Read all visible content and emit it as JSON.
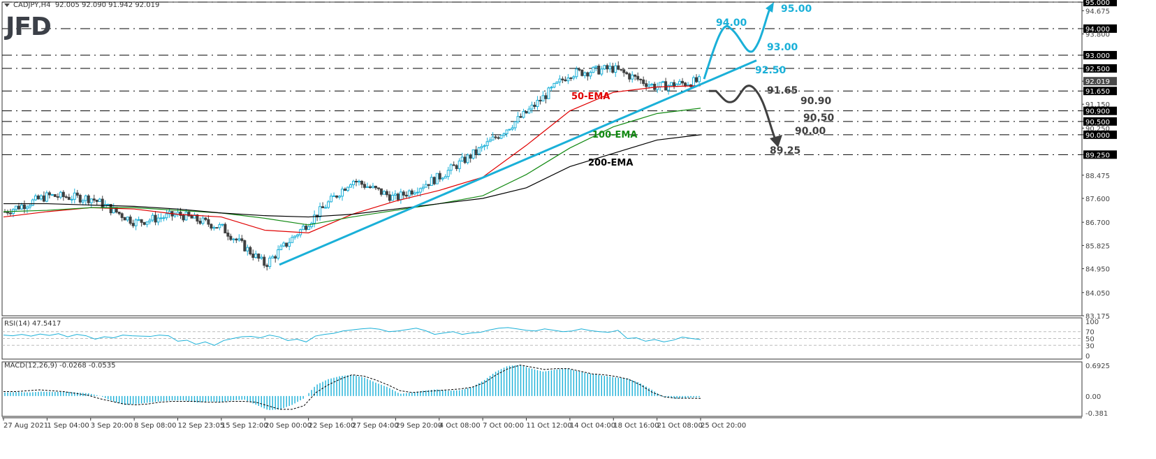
{
  "header": {
    "symbol": "CADJPY,H4",
    "ohlc": "92.005 92.090 91.942 92.019"
  },
  "logo": "JFD",
  "colors": {
    "bull": "#1ab0d8",
    "bear": "#404040",
    "ema50": "#e00000",
    "ema100": "#138a13",
    "ema200": "#000000",
    "trendline": "#1ab0d8",
    "bull_path": "#1ab0d8",
    "bear_path": "#404040",
    "rsi": "#1ab0d8",
    "macd_hist": "#1ab0d8",
    "macd_signal": "#000000"
  },
  "rsi_panel": {
    "label": "RSI(14) 47.5417"
  },
  "macd_panel": {
    "label": "MACD(12,26,9) -0.0268 -0.0535"
  },
  "chart_data": [
    {
      "type": "candlestick",
      "title": "CADJPY, H4",
      "ohlc_last": {
        "open": 92.005,
        "high": 92.09,
        "low": 91.942,
        "close": 92.019
      },
      "ylim": [
        83.175,
        95.0
      ],
      "y_ticks": [
        95.0,
        94.675,
        94.0,
        93.8,
        93.0,
        92.5,
        92.019,
        91.65,
        91.15,
        90.9,
        90.5,
        90.25,
        90.0,
        89.25,
        88.475,
        87.6,
        86.7,
        85.825,
        84.95,
        84.05,
        83.175
      ],
      "y_tick_labels": [
        "95.000",
        "94.675",
        "94.000",
        "93.800",
        "93.000",
        "92.500",
        "92.019",
        "91.650",
        "91.150",
        "90.900",
        "90.500",
        "90.250",
        "90.000",
        "89.250",
        "88.475",
        "87.600",
        "86.700",
        "85.825",
        "84.950",
        "84.050",
        "83.175"
      ],
      "highlighted_levels": [
        95.0,
        94.0,
        93.0,
        92.5,
        91.65,
        90.9,
        90.5,
        90.0,
        89.25
      ],
      "current_price": 92.019,
      "x_tick_labels": [
        "27 Aug 2021",
        "1 Sep 04:00",
        "3 Sep 20:00",
        "8 Sep 08:00",
        "12 Sep 23:05",
        "15 Sep 12:00",
        "20 Sep 00:00",
        "22 Sep 16:00",
        "27 Sep 04:00",
        "29 Sep 20:00",
        "4 Oct 08:00",
        "7 Oct 00:00",
        "11 Oct 12:00",
        "14 Oct 04:00",
        "18 Oct 16:00",
        "21 Oct 08:00",
        "25 Oct 20:00"
      ],
      "price_path": {
        "x": [
          "27 Aug 2021",
          "1 Sep 04:00",
          "3 Sep 20:00",
          "8 Sep 08:00",
          "12 Sep 23:05",
          "15 Sep 12:00",
          "20 Sep 00:00",
          "22 Sep 16:00",
          "27 Sep 04:00",
          "29 Sep 20:00",
          "4 Oct 08:00",
          "7 Oct 00:00",
          "11 Oct 12:00",
          "14 Oct 04:00",
          "18 Oct 16:00",
          "21 Oct 08:00",
          "25 Oct 20:00"
        ],
        "close": [
          87.1,
          87.7,
          87.6,
          86.7,
          87.0,
          86.5,
          85.1,
          86.7,
          88.3,
          87.6,
          88.4,
          89.5,
          90.8,
          92.3,
          92.5,
          91.8,
          92.02
        ]
      },
      "series": [
        {
          "name": "50-EMA",
          "color": "#e00000",
          "values": [
            86.9,
            87.1,
            87.25,
            87.2,
            87.0,
            86.9,
            86.4,
            86.3,
            87.0,
            87.5,
            87.9,
            88.4,
            89.6,
            90.9,
            91.6,
            91.8,
            91.85
          ]
        },
        {
          "name": "100-EMA",
          "color": "#138a13",
          "values": [
            87.1,
            87.15,
            87.25,
            87.25,
            87.15,
            87.05,
            86.85,
            86.6,
            86.9,
            87.15,
            87.4,
            87.7,
            88.5,
            89.5,
            90.3,
            90.8,
            91.0
          ]
        },
        {
          "name": "200-EMA",
          "color": "#000000",
          "values": [
            87.4,
            87.4,
            87.35,
            87.3,
            87.2,
            87.05,
            86.95,
            86.9,
            87.0,
            87.2,
            87.4,
            87.6,
            88.0,
            88.8,
            89.3,
            89.8,
            90.0
          ]
        }
      ],
      "trendline": {
        "from": {
          "x": "20 Sep 00:00",
          "y": 85.1
        },
        "to": {
          "x": "after 25 Oct",
          "y": 92.8
        }
      },
      "annotations": [
        {
          "text": "50-EMA",
          "color": "#e00000"
        },
        {
          "text": "100-EMA",
          "color": "#138a13"
        },
        {
          "text": "200-EMA",
          "color": "#000000"
        },
        {
          "text": "94.00",
          "color": "#1ab0d8"
        },
        {
          "text": "95.00",
          "color": "#1ab0d8"
        },
        {
          "text": "93.00",
          "color": "#1ab0d8"
        },
        {
          "text": "92.50",
          "color": "#1ab0d8"
        },
        {
          "text": "91.65",
          "color": "#404040"
        },
        {
          "text": "90.90",
          "color": "#404040"
        },
        {
          "text": "90.50",
          "color": "#404040"
        },
        {
          "text": "90.00",
          "color": "#404040"
        },
        {
          "text": "89.25",
          "color": "#404040"
        }
      ],
      "scenarios": [
        {
          "name": "bullish",
          "path_levels": [
            92.1,
            94.0,
            93.0,
            95.0
          ]
        },
        {
          "name": "bearish",
          "path_levels": [
            91.65,
            90.9,
            91.65,
            89.25
          ]
        }
      ]
    },
    {
      "type": "line",
      "title": "RSI(14) 47.5417",
      "ylim": [
        0,
        100
      ],
      "y_ticks": [
        100,
        70,
        50,
        30,
        0
      ],
      "levels": [
        70,
        50,
        30
      ],
      "series": [
        {
          "name": "RSI(14)",
          "last": 47.5417,
          "values": [
            60,
            58,
            62,
            57,
            63,
            59,
            64,
            55,
            62,
            58,
            48,
            55,
            52,
            60,
            58,
            57,
            56,
            60,
            58,
            42,
            45,
            33,
            40,
            30,
            44,
            50,
            55,
            56,
            52,
            60,
            55,
            44,
            48,
            40,
            57,
            62,
            65,
            72,
            75,
            78,
            80,
            77,
            70,
            72,
            76,
            80,
            73,
            62,
            66,
            70,
            62,
            66,
            68,
            75,
            80,
            82,
            78,
            74,
            72,
            78,
            74,
            70,
            72,
            78,
            73,
            70,
            68,
            74,
            50,
            52,
            42,
            47,
            40,
            45,
            54,
            50,
            47
          ]
        }
      ]
    },
    {
      "type": "bar",
      "title": "MACD(12,26,9) -0.0268 -0.0535",
      "ylim": [
        -0.381,
        0.6925
      ],
      "y_ticks": [
        0.6925,
        0.0,
        -0.381
      ],
      "series": [
        {
          "name": "MACD histogram",
          "last": -0.0268,
          "values": [
            0.08,
            0.09,
            0.08,
            0.1,
            0.09,
            0.1,
            0.08,
            0.06,
            0.0,
            -0.12,
            -0.2,
            -0.18,
            -0.15,
            -0.12,
            -0.1,
            -0.1,
            -0.15,
            -0.12,
            -0.14,
            -0.1,
            -0.08,
            -0.2,
            -0.32,
            -0.3,
            -0.2,
            -0.05,
            0.25,
            0.38,
            0.45,
            0.48,
            0.42,
            0.3,
            0.2,
            0.05,
            0.08,
            0.12,
            0.15,
            0.12,
            0.13,
            0.2,
            0.35,
            0.55,
            0.68,
            0.7,
            0.62,
            0.55,
            0.6,
            0.62,
            0.55,
            0.5,
            0.46,
            0.42,
            0.4,
            0.3,
            0.15,
            -0.02,
            -0.06,
            -0.04,
            -0.027
          ]
        },
        {
          "name": "Signal",
          "style": "dashed",
          "last": -0.0535,
          "values": [
            0.1,
            0.1,
            0.12,
            0.14,
            0.12,
            0.1,
            0.06,
            0.02,
            -0.06,
            -0.12,
            -0.18,
            -0.2,
            -0.18,
            -0.14,
            -0.12,
            -0.12,
            -0.12,
            -0.14,
            -0.14,
            -0.12,
            -0.12,
            -0.14,
            -0.22,
            -0.3,
            -0.3,
            -0.22,
            0.08,
            0.25,
            0.38,
            0.48,
            0.45,
            0.36,
            0.25,
            0.12,
            0.08,
            0.1,
            0.12,
            0.14,
            0.16,
            0.2,
            0.3,
            0.48,
            0.62,
            0.7,
            0.65,
            0.6,
            0.62,
            0.62,
            0.56,
            0.5,
            0.48,
            0.44,
            0.38,
            0.25,
            0.08,
            -0.02,
            -0.05,
            -0.05,
            -0.0535
          ]
        }
      ]
    }
  ]
}
